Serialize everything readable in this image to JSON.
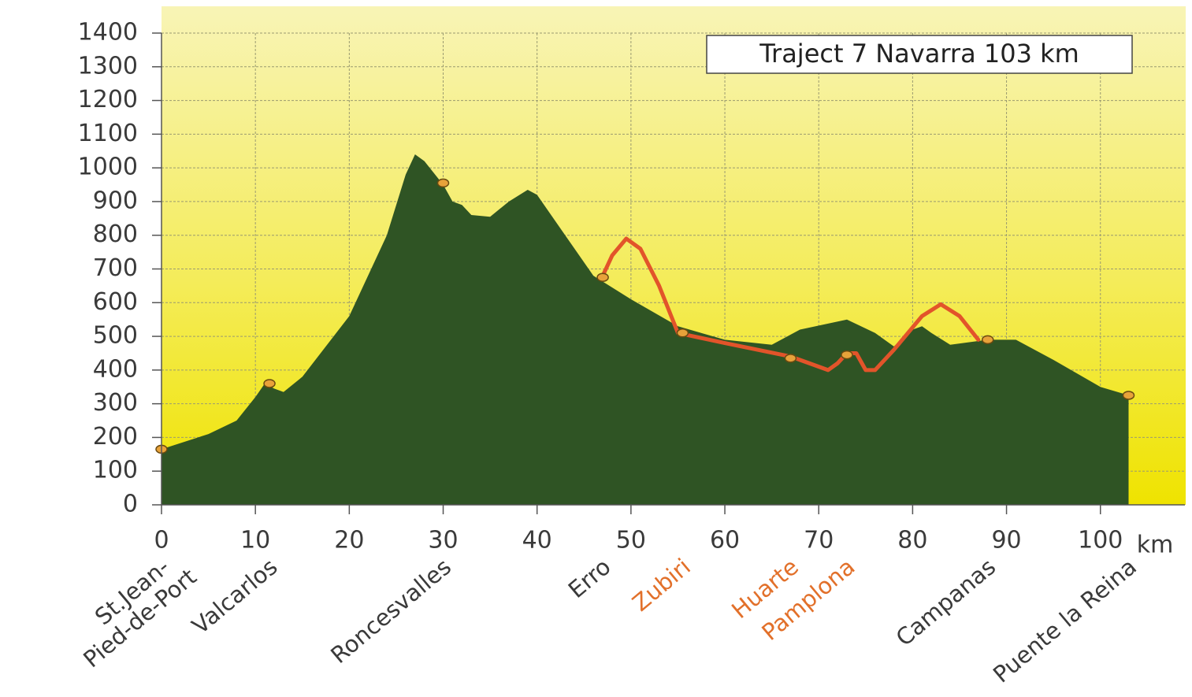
{
  "chart_data": {
    "type": "area",
    "title": "Traject 7 Navarra 103 km",
    "x_unit": "km",
    "xlim": [
      0,
      109
    ],
    "ylim": [
      0,
      1400
    ],
    "xticks": [
      0,
      10,
      20,
      30,
      40,
      50,
      60,
      70,
      80,
      90,
      100
    ],
    "yticks": [
      0,
      100,
      200,
      300,
      400,
      500,
      600,
      700,
      800,
      900,
      1000,
      1100,
      1200,
      1300,
      1400
    ],
    "grid": true,
    "series": [
      {
        "color": "#2f5424",
        "fill": true,
        "x": [
          0,
          5,
          8,
          10,
          11,
          12,
          13,
          15,
          20,
          24,
          26,
          27,
          28,
          30,
          31,
          32,
          33,
          35,
          37,
          39,
          40,
          43,
          46,
          50,
          55,
          60,
          65,
          68,
          73,
          76,
          78,
          80,
          81,
          82,
          84,
          88,
          91,
          95,
          100,
          103
        ],
        "values": [
          165,
          210,
          250,
          320,
          360,
          345,
          335,
          380,
          560,
          800,
          980,
          1040,
          1020,
          950,
          900,
          890,
          860,
          855,
          900,
          935,
          920,
          800,
          680,
          610,
          530,
          490,
          475,
          520,
          550,
          510,
          470,
          520,
          530,
          510,
          475,
          490,
          490,
          430,
          350,
          325
        ]
      },
      {
        "color": "#e2542a",
        "fill": false,
        "x": [
          47,
          48,
          49.5,
          51,
          53,
          55,
          60,
          67,
          71,
          72,
          73,
          74,
          75,
          76,
          78,
          81,
          83,
          85,
          87
        ],
        "values": [
          680,
          740,
          790,
          760,
          650,
          510,
          480,
          440,
          400,
          420,
          450,
          450,
          400,
          400,
          460,
          560,
          595,
          560,
          490
        ]
      }
    ],
    "waypoints": [
      {
        "name": [
          "St.Jean-",
          "Pied-de-Port"
        ],
        "x": 0,
        "y": 165,
        "color": "#3a3a3a"
      },
      {
        "name": [
          "Valcarlos"
        ],
        "x": 11.5,
        "y": 360,
        "color": "#3a3a3a"
      },
      {
        "name": [
          "Roncesvalles"
        ],
        "x": 30,
        "y": 955,
        "color": "#3a3a3a"
      },
      {
        "name": [
          "Erro"
        ],
        "x": 47,
        "y": 675,
        "color": "#3a3a3a"
      },
      {
        "name": [
          "Zubiri"
        ],
        "x": 55.5,
        "y": 510,
        "color": "#e2702a"
      },
      {
        "name": [
          "Huarte"
        ],
        "x": 67,
        "y": 435,
        "color": "#e2702a"
      },
      {
        "name": [
          "Pamplona"
        ],
        "x": 73,
        "y": 445,
        "color": "#e2702a"
      },
      {
        "name": [
          "Campanas"
        ],
        "x": 88,
        "y": 490,
        "color": "#3a3a3a"
      },
      {
        "name": [
          "Puente la Reina"
        ],
        "x": 103,
        "y": 325,
        "color": "#3a3a3a"
      }
    ]
  }
}
